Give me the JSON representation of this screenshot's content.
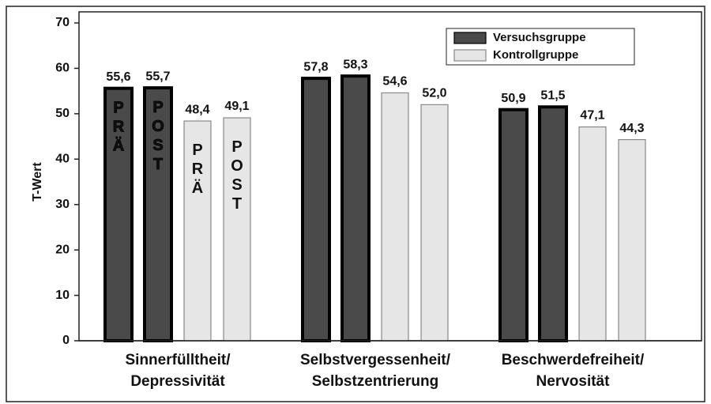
{
  "chart_data": {
    "type": "bar",
    "y_label": "T-Wert",
    "categories": [
      [
        "Sinnerfülltheit/",
        "Depressivität"
      ],
      [
        "Selbstvergessenheit/",
        "Selbstzentrierung"
      ],
      [
        "Beschwerdefreiheit/",
        "Nervosität"
      ]
    ],
    "phases": [
      "PRÄ",
      "POST"
    ],
    "series": [
      {
        "name": "Versuchsgruppe",
        "color": "#4a4a4a",
        "values": [
          [
            55.6,
            55.7
          ],
          [
            57.8,
            58.3
          ],
          [
            50.9,
            51.5
          ]
        ],
        "value_labels": [
          [
            "55,6",
            "55,7"
          ],
          [
            "57,8",
            "58,3"
          ],
          [
            "50,9",
            "51,5"
          ]
        ]
      },
      {
        "name": "Kontrollgruppe",
        "color": "#e6e6e6",
        "values": [
          [
            48.4,
            49.1
          ],
          [
            54.6,
            52.0
          ],
          [
            47.1,
            44.3
          ]
        ],
        "value_labels": [
          [
            "48,4",
            "49,1"
          ],
          [
            "54,6",
            "52,0"
          ],
          [
            "47,1",
            "44,3"
          ]
        ]
      }
    ],
    "ylim": [
      0,
      70
    ],
    "yticks": [
      0,
      10,
      20,
      30,
      40,
      50,
      60,
      70
    ],
    "legend": "top-right"
  }
}
